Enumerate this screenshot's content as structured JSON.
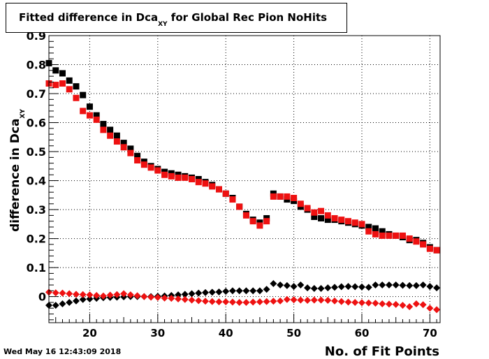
{
  "title": {
    "prefix": "Fitted difference in Dca",
    "subscript": "XY",
    "suffix": " for Global Rec Pion NoHits"
  },
  "timestamp": "Wed May 16 12:43:09 2018",
  "colors": {
    "black": "#000000",
    "red": "#ee1111"
  },
  "chart_data": {
    "type": "scatter",
    "xlabel": "No. of Fit Points",
    "ylabel": "difference in Dca",
    "ylabel_subscript": "XY",
    "xlim": [
      14,
      71.5
    ],
    "ylim": [
      -0.09,
      0.9
    ],
    "grid": true,
    "x_ticks": [
      20,
      30,
      40,
      50,
      60,
      70
    ],
    "y_ticks": [
      0,
      0.1,
      0.2,
      0.3,
      0.4,
      0.5,
      0.6,
      0.7,
      0.8,
      0.9
    ],
    "y_tick_labels": [
      "0",
      "0.1",
      "0.2",
      "0.3",
      "0.4",
      "0.5",
      "0.6",
      "0.7",
      "0.8",
      "0.9"
    ],
    "x": [
      14,
      15,
      16,
      17,
      18,
      19,
      20,
      21,
      22,
      23,
      24,
      25,
      26,
      27,
      28,
      29,
      30,
      31,
      32,
      33,
      34,
      35,
      36,
      37,
      38,
      39,
      40,
      41,
      42,
      43,
      44,
      45,
      46,
      47,
      48,
      49,
      50,
      51,
      52,
      53,
      54,
      55,
      56,
      57,
      58,
      59,
      60,
      61,
      62,
      63,
      64,
      65,
      66,
      67,
      68,
      69,
      70,
      71
    ],
    "series": [
      {
        "marker": "square",
        "color": "#000000",
        "values": [
          0.805,
          0.78,
          0.77,
          0.745,
          0.725,
          0.695,
          0.655,
          0.625,
          0.595,
          0.575,
          0.555,
          0.53,
          0.51,
          0.485,
          0.465,
          0.45,
          0.44,
          0.43,
          0.425,
          0.42,
          0.415,
          0.41,
          0.405,
          0.395,
          0.385,
          0.37,
          0.355,
          0.34,
          0.31,
          0.285,
          0.265,
          0.255,
          0.27,
          0.355,
          0.345,
          0.335,
          0.33,
          0.31,
          0.3,
          0.275,
          0.27,
          0.265,
          0.265,
          0.26,
          0.255,
          0.25,
          0.245,
          0.24,
          0.235,
          0.225,
          0.215,
          0.21,
          0.205,
          0.195,
          0.195,
          0.185,
          0.17,
          0.16
        ]
      },
      {
        "marker": "square",
        "color": "#ee1111",
        "values": [
          0.735,
          0.73,
          0.735,
          0.715,
          0.685,
          0.64,
          0.625,
          0.61,
          0.575,
          0.555,
          0.535,
          0.515,
          0.495,
          0.47,
          0.455,
          0.445,
          0.435,
          0.42,
          0.415,
          0.41,
          0.41,
          0.405,
          0.395,
          0.39,
          0.38,
          0.37,
          0.355,
          0.335,
          0.31,
          0.28,
          0.26,
          0.245,
          0.26,
          0.345,
          0.345,
          0.345,
          0.34,
          0.32,
          0.305,
          0.29,
          0.295,
          0.28,
          0.27,
          0.265,
          0.26,
          0.255,
          0.25,
          0.225,
          0.215,
          0.21,
          0.21,
          0.21,
          0.21,
          0.2,
          0.19,
          0.18,
          0.165,
          0.16
        ]
      },
      {
        "marker": "diamond",
        "color": "#000000",
        "values": [
          -0.03,
          -0.03,
          -0.025,
          -0.02,
          -0.015,
          -0.01,
          -0.008,
          -0.006,
          -0.004,
          -0.003,
          -0.002,
          -0.001,
          0,
          0,
          0,
          0,
          0.001,
          0.002,
          0.004,
          0.006,
          0.008,
          0.01,
          0.012,
          0.014,
          0.015,
          0.016,
          0.018,
          0.02,
          0.02,
          0.02,
          0.02,
          0.02,
          0.025,
          0.045,
          0.04,
          0.038,
          0.035,
          0.04,
          0.03,
          0.028,
          0.028,
          0.03,
          0.032,
          0.034,
          0.035,
          0.034,
          0.033,
          0.032,
          0.04,
          0.04,
          0.04,
          0.04,
          0.039,
          0.038,
          0.038,
          0.04,
          0.035,
          0.03
        ]
      },
      {
        "marker": "diamond",
        "color": "#ee1111",
        "values": [
          0.015,
          0.013,
          0.012,
          0.01,
          0.008,
          0.007,
          0.006,
          0.004,
          0.002,
          0.005,
          0.007,
          0.01,
          0.006,
          0.003,
          0,
          -0.002,
          -0.003,
          -0.005,
          -0.006,
          -0.008,
          -0.01,
          -0.012,
          -0.014,
          -0.016,
          -0.017,
          -0.018,
          -0.018,
          -0.019,
          -0.02,
          -0.02,
          -0.019,
          -0.018,
          -0.017,
          -0.016,
          -0.015,
          -0.01,
          -0.011,
          -0.012,
          -0.013,
          -0.012,
          -0.012,
          -0.013,
          -0.015,
          -0.017,
          -0.019,
          -0.02,
          -0.021,
          -0.022,
          -0.023,
          -0.025,
          -0.026,
          -0.027,
          -0.03,
          -0.035,
          -0.025,
          -0.028,
          -0.04,
          -0.045
        ]
      }
    ]
  }
}
